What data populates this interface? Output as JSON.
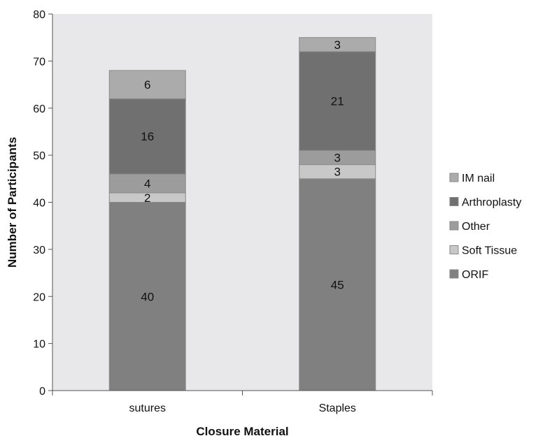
{
  "chart_data": {
    "type": "bar",
    "stacked": true,
    "categories": [
      "sutures",
      "Staples"
    ],
    "series": [
      {
        "name": "ORIF",
        "values": [
          40,
          45
        ],
        "color": "#808080"
      },
      {
        "name": "Soft Tissue",
        "values": [
          2,
          3
        ],
        "color": "#c8c8c8"
      },
      {
        "name": "Other",
        "values": [
          4,
          3
        ],
        "color": "#9c9c9c"
      },
      {
        "name": "Arthroplasty",
        "values": [
          16,
          21
        ],
        "color": "#707070"
      },
      {
        "name": "IM nail",
        "values": [
          6,
          3
        ],
        "color": "#ababab"
      }
    ],
    "xlabel": "Closure Material",
    "ylabel": "Number of Participants",
    "ylim": [
      0,
      80
    ],
    "yticks": [
      0,
      10,
      20,
      30,
      40,
      50,
      60,
      70,
      80
    ],
    "grid": false,
    "legend_position": "right",
    "legend_order": [
      "IM nail",
      "Arthroplasty",
      "Other",
      "Soft Tissue",
      "ORIF"
    ],
    "plot_background": "#e8e8ea"
  }
}
